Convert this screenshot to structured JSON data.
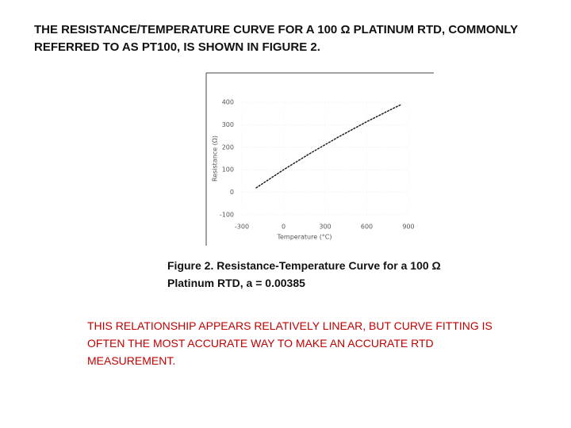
{
  "heading": {
    "lines": [
      "THE RESISTANCE/TEMPERATURE CURVE FOR A 100 Ω PLATINUM RTD, COMMONLY",
      "REFERRED TO AS PT100, IS SHOWN IN FIGURE 2."
    ]
  },
  "chart_data": {
    "type": "line",
    "x_label": "Temperature (°C)",
    "y_label": "Resistance (Ω)",
    "x": [
      -200,
      0,
      200,
      400,
      600,
      800,
      850
    ],
    "values": [
      18.5,
      100,
      175.9,
      247.1,
      313.7,
      375.7,
      390.5
    ],
    "color": "#111111",
    "xlim": [
      -300,
      900
    ],
    "xticks": [
      -300,
      0,
      300,
      600,
      900
    ],
    "ylim": [
      -100,
      400
    ],
    "yticks": [
      -100,
      0,
      100,
      200,
      300,
      400
    ],
    "grid": true
  },
  "caption": {
    "lines": [
      "Figure 2. Resistance-Temperature Curve for a 100 Ω",
      "Platinum RTD, a = 0.00385"
    ]
  },
  "note": {
    "lines": [
      "THIS RELATIONSHIP APPEARS RELATIVELY LINEAR, BUT CURVE FITTING IS",
      "OFTEN THE MOST ACCURATE WAY TO MAKE AN ACCURATE RTD",
      "MEASUREMENT."
    ]
  }
}
